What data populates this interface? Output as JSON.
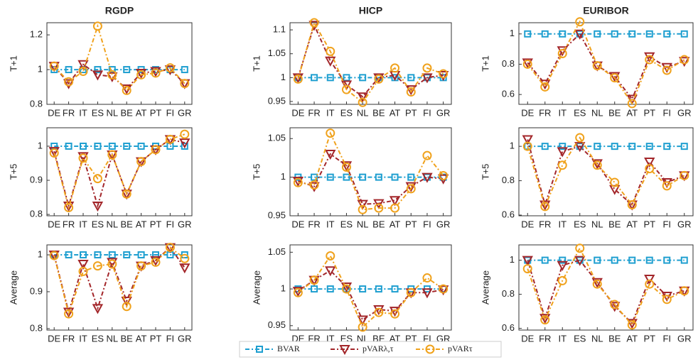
{
  "chart_data": [
    {
      "type": "line",
      "title": "RGDP",
      "ylabel": "T+1",
      "categories": [
        "DE",
        "FR",
        "IT",
        "ES",
        "NL",
        "BE",
        "AT",
        "PT",
        "FI",
        "GR"
      ],
      "ylim": [
        0.8,
        1.27
      ],
      "yticks": [
        0.8,
        1,
        1.2
      ],
      "series": [
        {
          "name": "BVAR",
          "color": "#1f9fd0",
          "marker": "square",
          "values": [
            1,
            1,
            1,
            1,
            1,
            1,
            1,
            1,
            1,
            1
          ]
        },
        {
          "name": "pVARλ,τ",
          "color": "#a3262a",
          "marker": "triangle",
          "values": [
            1.02,
            0.92,
            1.03,
            0.97,
            0.96,
            0.89,
            0.98,
            0.99,
            1.0,
            0.92
          ]
        },
        {
          "name": "pVARτ",
          "color": "#f0a21c",
          "marker": "circle",
          "values": [
            1.02,
            0.93,
            0.99,
            1.25,
            0.97,
            0.88,
            0.97,
            0.98,
            1.01,
            0.92
          ]
        }
      ]
    },
    {
      "type": "line",
      "title": "HICP",
      "ylabel": "T+1",
      "categories": [
        "DE",
        "FR",
        "IT",
        "ES",
        "NL",
        "BE",
        "AT",
        "PT",
        "FI",
        "GR"
      ],
      "ylim": [
        0.944,
        1.115
      ],
      "yticks": [
        0.95,
        1,
        1.05,
        1.1
      ],
      "series": [
        {
          "color": "#1f9fd0",
          "marker": "square",
          "values": [
            1,
            1,
            1,
            1,
            1,
            1,
            1,
            1,
            1,
            1
          ]
        },
        {
          "color": "#a3262a",
          "marker": "triangle",
          "values": [
            1.0,
            1.11,
            1.035,
            0.985,
            0.96,
            1.0,
            1.005,
            0.975,
            1.0,
            1.005
          ]
        },
        {
          "color": "#f0a21c",
          "marker": "circle",
          "values": [
            0.997,
            1.115,
            1.055,
            0.975,
            0.948,
            0.997,
            1.02,
            0.97,
            1.02,
            1.008
          ]
        }
      ]
    },
    {
      "type": "line",
      "title": "EURIBOR",
      "ylabel": "T+1",
      "categories": [
        "DE",
        "FR",
        "IT",
        "ES",
        "NL",
        "BE",
        "AT",
        "PT",
        "FI",
        "GR"
      ],
      "ylim": [
        0.535,
        1.074
      ],
      "yticks": [
        0.6,
        0.8,
        1
      ],
      "series": [
        {
          "color": "#1f9fd0",
          "marker": "square",
          "values": [
            1,
            1,
            1,
            1,
            1,
            1,
            1,
            1,
            1,
            1
          ]
        },
        {
          "color": "#a3262a",
          "marker": "triangle",
          "values": [
            0.81,
            0.67,
            0.89,
            1.0,
            0.79,
            0.72,
            0.57,
            0.85,
            0.78,
            0.82
          ]
        },
        {
          "color": "#f0a21c",
          "marker": "circle",
          "values": [
            0.8,
            0.65,
            0.87,
            1.08,
            0.79,
            0.71,
            0.54,
            0.83,
            0.76,
            0.83
          ]
        }
      ]
    },
    {
      "type": "line",
      "ylabel": "T+5",
      "categories": [
        "DE",
        "FR",
        "IT",
        "ES",
        "NL",
        "BE",
        "AT",
        "PT",
        "FI",
        "GR"
      ],
      "ylim": [
        0.796,
        1.054
      ],
      "yticks": [
        0.8,
        0.9,
        1
      ],
      "series": [
        {
          "color": "#1f9fd0",
          "marker": "square",
          "values": [
            1,
            1,
            1,
            1,
            1,
            1,
            1,
            1,
            1,
            1
          ]
        },
        {
          "color": "#a3262a",
          "marker": "triangle",
          "values": [
            0.985,
            0.825,
            0.97,
            0.825,
            0.975,
            0.86,
            0.955,
            0.99,
            1.02,
            1.01
          ]
        },
        {
          "color": "#f0a21c",
          "marker": "circle",
          "values": [
            0.98,
            0.82,
            0.965,
            0.905,
            0.975,
            0.86,
            0.955,
            0.99,
            1.02,
            1.035
          ]
        }
      ]
    },
    {
      "type": "line",
      "ylabel": "T+5",
      "categories": [
        "DE",
        "FR",
        "IT",
        "ES",
        "NL",
        "BE",
        "AT",
        "PT",
        "FI",
        "GR"
      ],
      "ylim": [
        0.95,
        1.064
      ],
      "yticks": [
        0.95,
        1,
        1.05
      ],
      "series": [
        {
          "color": "#1f9fd0",
          "marker": "square",
          "values": [
            1,
            1,
            1,
            1,
            1,
            1,
            1,
            1,
            1,
            1
          ]
        },
        {
          "color": "#a3262a",
          "marker": "triangle",
          "values": [
            0.995,
            0.988,
            1.03,
            1.015,
            0.965,
            0.966,
            0.97,
            0.988,
            1.0,
            0.998
          ]
        },
        {
          "color": "#f0a21c",
          "marker": "circle",
          "values": [
            0.993,
            0.99,
            1.057,
            1.013,
            0.958,
            0.96,
            0.96,
            0.985,
            1.028,
            1.002
          ]
        }
      ]
    },
    {
      "type": "line",
      "ylabel": "T+5",
      "categories": [
        "DE",
        "FR",
        "IT",
        "ES",
        "NL",
        "BE",
        "AT",
        "PT",
        "FI",
        "GR"
      ],
      "ylim": [
        0.596,
        1.108
      ],
      "yticks": [
        0.6,
        0.8,
        1
      ],
      "series": [
        {
          "color": "#1f9fd0",
          "marker": "square",
          "values": [
            1,
            1,
            1,
            1,
            1,
            1,
            1,
            1,
            1,
            1
          ]
        },
        {
          "color": "#a3262a",
          "marker": "triangle",
          "values": [
            1.04,
            0.66,
            0.97,
            1.0,
            0.9,
            0.75,
            0.66,
            0.91,
            0.79,
            0.83
          ]
        },
        {
          "color": "#f0a21c",
          "marker": "circle",
          "values": [
            1.0,
            0.65,
            0.89,
            1.05,
            0.89,
            0.79,
            0.66,
            0.87,
            0.77,
            0.83
          ]
        }
      ]
    },
    {
      "type": "line",
      "ylabel": "Average",
      "categories": [
        "DE",
        "FR",
        "IT",
        "ES",
        "NL",
        "BE",
        "AT",
        "PT",
        "FI",
        "GR"
      ],
      "ylim": [
        0.796,
        1.027
      ],
      "yticks": [
        0.8,
        0.9,
        1
      ],
      "series": [
        {
          "color": "#1f9fd0",
          "marker": "square",
          "values": [
            1,
            1,
            1,
            1,
            1,
            1,
            1,
            1,
            1,
            1
          ]
        },
        {
          "color": "#a3262a",
          "marker": "triangle",
          "values": [
            1.0,
            0.845,
            0.975,
            0.855,
            0.98,
            0.875,
            0.97,
            0.985,
            1.02,
            0.965
          ]
        },
        {
          "color": "#f0a21c",
          "marker": "circle",
          "values": [
            0.998,
            0.84,
            0.955,
            0.97,
            0.975,
            0.86,
            0.97,
            0.98,
            1.02,
            0.99
          ]
        }
      ]
    },
    {
      "type": "line",
      "ylabel": "Average",
      "categories": [
        "DE",
        "FR",
        "IT",
        "ES",
        "NL",
        "BE",
        "AT",
        "PT",
        "FI",
        "GR"
      ],
      "ylim": [
        0.944,
        1.06
      ],
      "yticks": [
        0.95,
        1,
        1.05
      ],
      "series": [
        {
          "color": "#1f9fd0",
          "marker": "square",
          "values": [
            1,
            1,
            1,
            1,
            1,
            1,
            1,
            1,
            1,
            1
          ]
        },
        {
          "color": "#a3262a",
          "marker": "triangle",
          "values": [
            0.997,
            1.012,
            1.025,
            1.003,
            0.958,
            0.972,
            0.97,
            0.995,
            0.995,
            0.999
          ]
        },
        {
          "color": "#f0a21c",
          "marker": "circle",
          "values": [
            0.995,
            1.012,
            1.045,
            1.0,
            0.948,
            0.968,
            0.966,
            0.995,
            1.015,
            1.0
          ]
        }
      ]
    },
    {
      "type": "line",
      "ylabel": "Average",
      "categories": [
        "DE",
        "FR",
        "IT",
        "ES",
        "NL",
        "BE",
        "AT",
        "PT",
        "FI",
        "GR"
      ],
      "ylim": [
        0.59,
        1.09
      ],
      "yticks": [
        0.6,
        0.8,
        1
      ],
      "series": [
        {
          "color": "#1f9fd0",
          "marker": "square",
          "values": [
            1,
            1,
            1,
            1,
            1,
            1,
            1,
            1,
            1,
            1
          ]
        },
        {
          "color": "#a3262a",
          "marker": "triangle",
          "values": [
            1.0,
            0.66,
            0.97,
            1.0,
            0.87,
            0.73,
            0.63,
            0.89,
            0.79,
            0.82
          ]
        },
        {
          "color": "#f0a21c",
          "marker": "circle",
          "values": [
            0.95,
            0.65,
            0.88,
            1.07,
            0.86,
            0.74,
            0.62,
            0.86,
            0.77,
            0.82
          ]
        }
      ]
    }
  ]
}
